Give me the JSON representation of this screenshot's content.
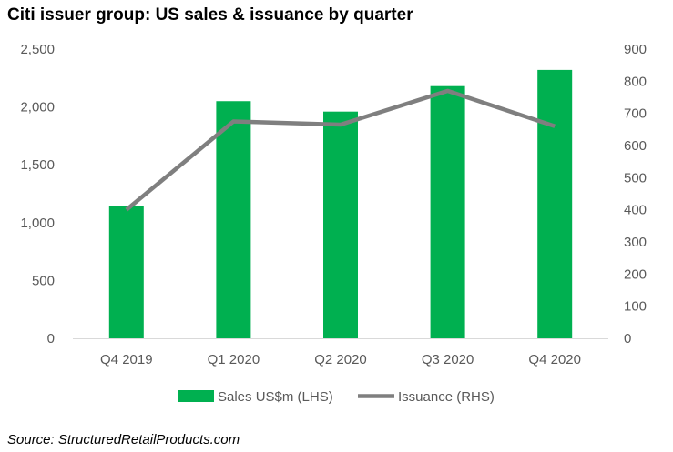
{
  "title": "Citi issuer group: US sales & issuance by quarter",
  "source": "Source: StructuredRetailProducts.com",
  "colors": {
    "bar": "#00b050",
    "line": "#7f7f7f",
    "axis_text": "#595959",
    "axis_line": "#d9d9d9"
  },
  "chart_data": {
    "type": "bar",
    "categories": [
      "Q4 2019",
      "Q1 2020",
      "Q2 2020",
      "Q3 2020",
      "Q4 2020"
    ],
    "series": [
      {
        "name": "Sales US$m (LHS)",
        "type": "bar",
        "axis": "left",
        "values": [
          1140,
          2050,
          1960,
          2180,
          2320
        ]
      },
      {
        "name": "Issuance (RHS)",
        "type": "line",
        "axis": "right",
        "values": [
          400,
          675,
          665,
          770,
          660
        ]
      }
    ],
    "y_left": {
      "min": 0,
      "max": 2500,
      "ticks": [
        "0",
        "500",
        "1,000",
        "1,500",
        "2,000",
        "2,500"
      ]
    },
    "y_right": {
      "min": 0,
      "max": 900,
      "ticks": [
        "0",
        "100",
        "200",
        "300",
        "400",
        "500",
        "600",
        "700",
        "800",
        "900"
      ]
    },
    "grid": false,
    "legend_position": "bottom"
  }
}
